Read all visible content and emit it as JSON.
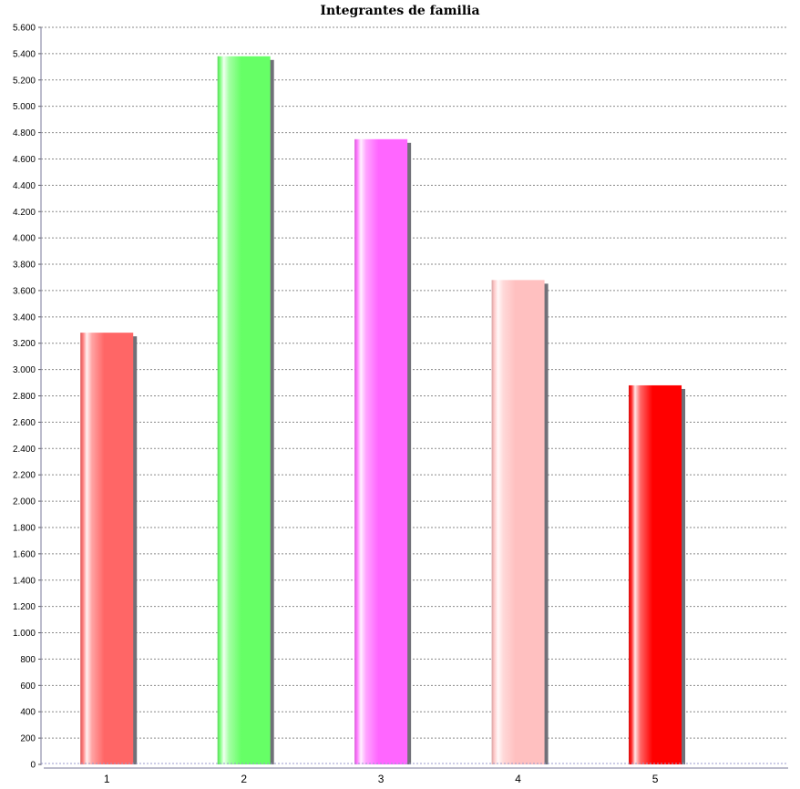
{
  "chart_data": {
    "type": "bar",
    "title": "Integrantes de familia",
    "xlabel": "",
    "ylabel": "",
    "categories": [
      "1",
      "2",
      "3",
      "4",
      "5"
    ],
    "values": [
      3280,
      5380,
      4750,
      3680,
      2880
    ],
    "ylim": [
      0,
      5600
    ],
    "yticks": [
      0,
      200,
      400,
      600,
      800,
      1000,
      1200,
      1400,
      1600,
      1800,
      2000,
      2200,
      2400,
      2600,
      2800,
      3000,
      3200,
      3400,
      3600,
      3800,
      4000,
      4200,
      4400,
      4600,
      4800,
      5000,
      5200,
      5400,
      5600
    ],
    "ytick_labels": [
      "0",
      "200",
      "400",
      "600",
      "800",
      "1.000",
      "1.200",
      "1.400",
      "1.600",
      "1.800",
      "2.000",
      "2.200",
      "2.400",
      "2.600",
      "2.800",
      "3.000",
      "3.200",
      "3.400",
      "3.600",
      "3.800",
      "4.000",
      "4.200",
      "4.400",
      "4.600",
      "4.800",
      "5.000",
      "5.200",
      "5.400",
      "5.600"
    ],
    "colors": [
      "#ff6666",
      "#66ff66",
      "#ff66ff",
      "#ffc0c0",
      "#ff0000"
    ],
    "grid": true,
    "legend": "none"
  }
}
